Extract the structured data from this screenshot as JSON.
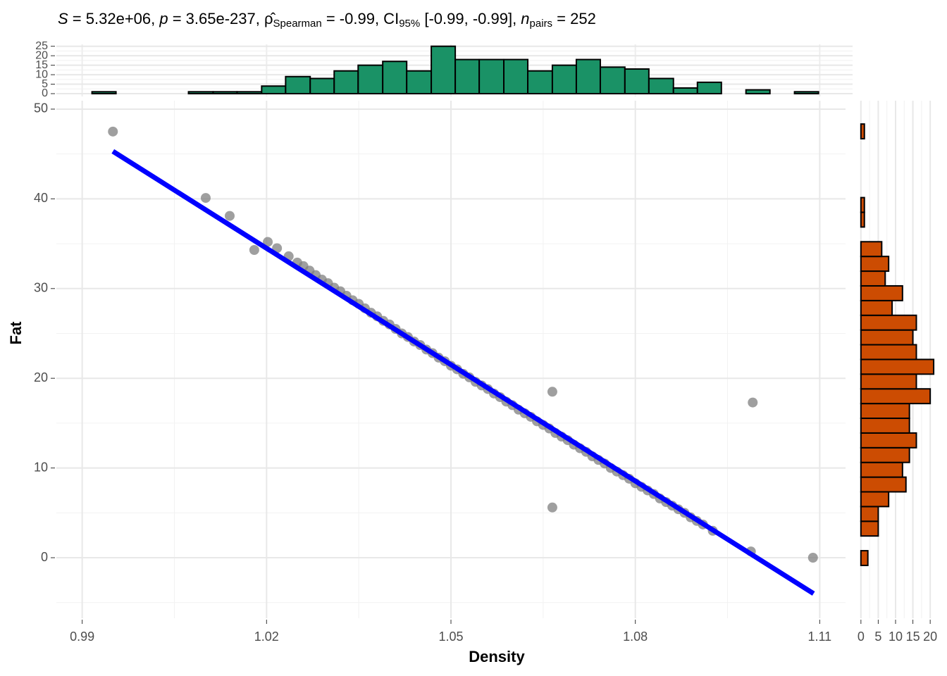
{
  "chart_data": [
    {
      "type": "scatter",
      "title": [
        "S",
        " = 5.32e+06, ",
        "p",
        " = 3.65e-237, ",
        "ρ̂",
        "Spearman",
        " = -0.99, CI",
        "95%",
        " [-0.99, -0.99], ",
        "n",
        "pairs",
        " = 252"
      ],
      "x_label": "Density",
      "y_label": "Fat",
      "x": [
        0.995,
        1.0101,
        1.014,
        1.018,
        1.0202,
        1.0217,
        1.0236,
        1.025,
        1.026,
        1.027,
        1.028,
        1.029,
        1.03,
        1.031,
        1.032,
        1.033,
        1.034,
        1.035,
        1.036,
        1.037,
        1.038,
        1.039,
        1.04,
        1.041,
        1.042,
        1.043,
        1.044,
        1.045,
        1.046,
        1.047,
        1.048,
        1.049,
        1.05,
        1.051,
        1.052,
        1.053,
        1.054,
        1.055,
        1.056,
        1.057,
        1.058,
        1.059,
        1.06,
        1.061,
        1.062,
        1.063,
        1.064,
        1.065,
        1.066,
        1.067,
        1.068,
        1.069,
        1.07,
        1.071,
        1.072,
        1.073,
        1.074,
        1.075,
        1.076,
        1.077,
        1.078,
        1.079,
        1.08,
        1.081,
        1.082,
        1.083,
        1.084,
        1.085,
        1.086,
        1.087,
        1.088,
        1.089,
        1.09,
        1.091,
        1.0926,
        1.0665,
        1.0665,
        1.0991,
        1.0988,
        1.1089
      ],
      "y": [
        47.5,
        40.1,
        38.1,
        34.3,
        35.2,
        34.5,
        33.6,
        32.9,
        32.5,
        32.0,
        31.5,
        31.0,
        30.6,
        30.1,
        29.7,
        29.2,
        28.7,
        28.3,
        27.8,
        27.3,
        26.9,
        26.4,
        26.0,
        25.5,
        25.0,
        24.6,
        24.1,
        23.7,
        23.2,
        22.8,
        22.3,
        21.9,
        21.4,
        21.0,
        20.5,
        20.1,
        19.6,
        19.2,
        18.8,
        18.3,
        17.9,
        17.4,
        17.0,
        16.5,
        16.1,
        15.7,
        15.2,
        14.8,
        14.4,
        13.9,
        13.5,
        13.1,
        12.6,
        12.2,
        11.8,
        11.3,
        10.9,
        10.5,
        10.0,
        9.6,
        9.2,
        8.8,
        8.3,
        7.9,
        7.5,
        7.1,
        6.6,
        6.2,
        5.8,
        5.4,
        5.0,
        4.5,
        4.1,
        3.7,
        3.0,
        18.5,
        5.6,
        17.3,
        0.7,
        0.0
      ],
      "color": "#7f7f7f",
      "fit": {
        "x": [
          0.995,
          1.109
        ],
        "y": [
          45.3,
          -4.0
        ],
        "color": "#0000ff"
      },
      "xlim": [
        0.9858,
        1.1142
      ],
      "xticks": [
        0.99,
        1.02,
        1.05,
        1.08,
        1.11
      ],
      "minor_xticks": [
        1.005,
        1.035,
        1.065,
        1.095
      ],
      "ylim": [
        -6.75,
        50.94
      ],
      "yticks": [
        0,
        10,
        20,
        30,
        40,
        50
      ],
      "minor_yticks": [
        -5,
        5,
        15,
        25,
        35,
        45
      ],
      "grid": true
    },
    {
      "type": "histogram",
      "orientation": "vertical",
      "color": "#1a9266",
      "bins": [
        0.9916,
        0.9955,
        0.9994,
        1.0034,
        1.0073,
        1.0113,
        1.0152,
        1.0192,
        1.0231,
        1.0271,
        1.031,
        1.0349,
        1.0389,
        1.0428,
        1.0468,
        1.0507,
        1.0546,
        1.0586,
        1.0625,
        1.0665,
        1.0704,
        1.0743,
        1.0783,
        1.0822,
        1.0862,
        1.0901,
        1.094,
        1.098,
        1.1019,
        1.1059,
        1.1098
      ],
      "values": [
        1,
        0,
        0,
        0,
        1,
        1,
        1,
        4,
        9,
        8,
        12,
        15,
        17,
        12,
        25,
        18,
        18,
        18,
        12,
        15,
        18,
        14,
        13,
        8,
        3,
        6,
        0,
        2,
        0,
        1
      ],
      "ylim": [
        0,
        26
      ],
      "yticks": [
        0,
        5,
        10,
        15,
        20,
        25
      ],
      "minor_yticks": [
        2.5,
        7.5,
        12.5,
        17.5,
        22.5
      ],
      "grid": true
    },
    {
      "type": "histogram",
      "orientation": "horizontal",
      "color": "#cc4c02",
      "bins": [
        -0.86,
        0.78,
        2.42,
        4.06,
        5.7,
        7.34,
        8.98,
        10.62,
        12.26,
        13.9,
        15.54,
        17.18,
        18.82,
        20.46,
        22.1,
        23.74,
        25.38,
        27.02,
        28.66,
        30.3,
        31.94,
        33.58,
        35.22,
        36.86,
        38.5,
        40.14,
        41.78,
        43.42,
        45.06,
        46.7,
        48.34
      ],
      "values": [
        2,
        0,
        5,
        5,
        8,
        13,
        12,
        14,
        16,
        14,
        14,
        20,
        16,
        21,
        16,
        15,
        16,
        9,
        12,
        7,
        8,
        6,
        0,
        1,
        1,
        0,
        0,
        0,
        0,
        1
      ],
      "xlim": [
        -2,
        22
      ],
      "xticks": [
        0,
        5,
        10,
        15,
        20
      ],
      "minor_xticks": [
        2.5,
        7.5,
        12.5,
        17.5
      ],
      "grid": true
    }
  ]
}
